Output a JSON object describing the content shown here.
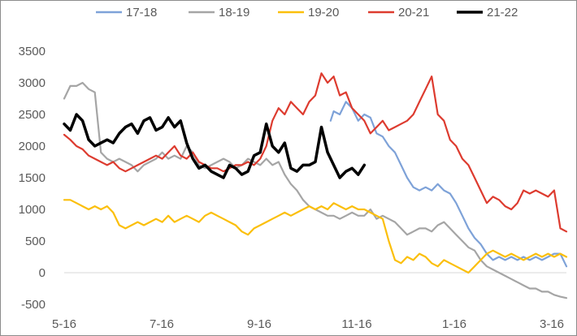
{
  "chart_data": {
    "type": "line",
    "title": "",
    "xlabel": "",
    "ylabel": "",
    "ylim": [
      -500,
      3500
    ],
    "yticks": [
      "-500",
      "0",
      "500",
      "1000",
      "1500",
      "2000",
      "2500",
      "3000",
      "3500"
    ],
    "xticks": [
      "5-16",
      "7-16",
      "9-16",
      "11-16",
      "1-16",
      "3-16"
    ],
    "grid": false,
    "legend": "top",
    "x_unit": "weeks from 5-16",
    "series": [
      {
        "name": "17-18",
        "color": "#7ea2d8",
        "x": [
          0,
          0,
          43.5,
          44,
          45,
          46,
          47,
          48,
          49,
          50,
          51,
          52,
          53,
          54,
          55,
          56,
          57,
          58,
          59,
          60,
          61,
          62,
          63,
          64,
          65,
          66,
          67,
          68,
          69,
          70,
          71,
          72,
          73,
          74,
          75,
          76,
          77,
          78,
          79,
          80,
          81,
          82
        ],
        "y": [
          null,
          null,
          2400,
          2550,
          2500,
          2700,
          2600,
          2400,
          2500,
          2450,
          2200,
          2150,
          2000,
          1900,
          1700,
          1500,
          1350,
          1300,
          1350,
          1300,
          1400,
          1300,
          1250,
          1100,
          900,
          700,
          550,
          450,
          300,
          200,
          250,
          200,
          250,
          200,
          250,
          200,
          250,
          200,
          250,
          300,
          300,
          100
        ]
      },
      {
        "name": "18-19",
        "color": "#a5a5a5",
        "x": [
          0,
          1,
          2,
          3,
          4,
          5,
          6,
          7,
          8,
          9,
          10,
          11,
          12,
          13,
          14,
          15,
          16,
          17,
          18,
          19,
          20,
          21,
          22,
          23,
          24,
          25,
          26,
          27,
          28,
          29,
          30,
          31,
          32,
          33,
          34,
          35,
          36,
          37,
          38,
          39,
          40,
          41,
          42,
          43,
          44,
          45,
          46,
          47,
          48,
          49,
          50,
          51,
          52,
          53,
          54,
          55,
          56,
          57,
          58,
          59,
          60,
          61,
          62,
          63,
          64,
          65,
          66,
          67,
          68,
          69,
          70,
          71,
          72,
          73,
          74,
          75,
          76,
          77,
          78,
          79,
          80,
          81,
          82
        ],
        "y": [
          2750,
          2950,
          2950,
          3000,
          2900,
          2850,
          1900,
          1800,
          1750,
          1800,
          1750,
          1700,
          1600,
          1700,
          1750,
          1800,
          1900,
          1800,
          1850,
          1800,
          2000,
          1900,
          1700,
          1650,
          1700,
          1750,
          1800,
          1750,
          1650,
          1700,
          1800,
          1750,
          1700,
          1800,
          1700,
          1750,
          1550,
          1400,
          1300,
          1150,
          1050,
          1000,
          950,
          900,
          900,
          850,
          900,
          950,
          900,
          900,
          1000,
          850,
          900,
          850,
          800,
          700,
          600,
          650,
          700,
          700,
          650,
          750,
          800,
          700,
          600,
          500,
          400,
          350,
          200,
          100,
          50,
          0,
          -50,
          -100,
          -150,
          -200,
          -250,
          -250,
          -300,
          -300,
          -350,
          -380,
          -400
        ]
      },
      {
        "name": "19-20",
        "color": "#fbbf0b",
        "x": [
          0,
          1,
          2,
          3,
          4,
          5,
          6,
          7,
          8,
          9,
          10,
          11,
          12,
          13,
          14,
          15,
          16,
          17,
          18,
          19,
          20,
          21,
          22,
          23,
          24,
          25,
          26,
          27,
          28,
          29,
          30,
          31,
          32,
          33,
          34,
          35,
          36,
          37,
          38,
          39,
          40,
          41,
          42,
          43,
          44,
          45,
          46,
          47,
          48,
          49,
          50,
          51,
          52,
          53,
          54,
          55,
          56,
          57,
          58,
          59,
          60,
          61,
          62,
          63,
          64,
          65,
          66,
          67,
          68,
          69,
          70,
          71,
          72,
          73,
          74,
          75,
          76,
          77,
          78,
          79,
          80,
          81,
          82
        ],
        "y": [
          1150,
          1150,
          1100,
          1050,
          1000,
          1050,
          1000,
          1050,
          950,
          750,
          700,
          750,
          800,
          750,
          800,
          850,
          800,
          900,
          800,
          850,
          900,
          850,
          800,
          900,
          950,
          900,
          850,
          800,
          750,
          650,
          600,
          700,
          750,
          800,
          850,
          900,
          950,
          900,
          950,
          1000,
          1050,
          1000,
          1050,
          1000,
          1100,
          1050,
          1000,
          1050,
          1000,
          1000,
          950,
          900,
          850,
          500,
          200,
          150,
          250,
          200,
          300,
          250,
          150,
          100,
          200,
          150,
          100,
          50,
          0,
          100,
          200,
          300,
          350,
          300,
          250,
          300,
          250,
          200,
          250,
          300,
          250,
          300,
          250,
          300,
          250
        ]
      },
      {
        "name": "20-21",
        "color": "#dd3b2f",
        "x": [
          0,
          1,
          2,
          3,
          4,
          5,
          6,
          7,
          8,
          9,
          10,
          11,
          12,
          13,
          14,
          15,
          16,
          17,
          18,
          19,
          20,
          21,
          22,
          23,
          24,
          25,
          26,
          27,
          28,
          29,
          30,
          31,
          32,
          33,
          34,
          35,
          36,
          37,
          38,
          39,
          40,
          41,
          42,
          43,
          44,
          45,
          46,
          47,
          48,
          49,
          50,
          51,
          52,
          53,
          54,
          55,
          56,
          57,
          58,
          59,
          60,
          61,
          62,
          63,
          64,
          65,
          66,
          67,
          68,
          69,
          70,
          71,
          72,
          73,
          74,
          75,
          76,
          77,
          78,
          79,
          80,
          81,
          82
        ],
        "y": [
          2180,
          2100,
          2000,
          1950,
          1850,
          1800,
          1750,
          1700,
          1750,
          1650,
          1600,
          1650,
          1700,
          1750,
          1800,
          1850,
          1800,
          1900,
          2000,
          1850,
          1800,
          1900,
          1750,
          1700,
          1650,
          1650,
          1600,
          1650,
          1700,
          1700,
          1750,
          1700,
          1800,
          2000,
          2400,
          2600,
          2500,
          2700,
          2600,
          2500,
          2700,
          2800,
          3150,
          3000,
          3100,
          2800,
          2850,
          2600,
          2500,
          2400,
          2200,
          2300,
          2400,
          2250,
          2300,
          2350,
          2400,
          2500,
          2700,
          2900,
          3100,
          2500,
          2400,
          2100,
          2000,
          1800,
          1700,
          1500,
          1300,
          1100,
          1200,
          1150,
          1050,
          1000,
          1100,
          1300,
          1250,
          1300,
          1250,
          1200,
          1300,
          700,
          650
        ]
      },
      {
        "name": "21-22",
        "color": "#000000",
        "x": [
          0,
          1,
          2,
          3,
          4,
          5,
          6,
          7,
          8,
          9,
          10,
          11,
          12,
          13,
          14,
          15,
          16,
          17,
          18,
          19,
          20,
          21,
          22,
          23,
          24,
          25,
          26,
          27,
          28,
          29,
          30,
          31,
          32,
          33,
          34,
          35,
          36,
          37,
          38,
          39,
          40,
          41,
          42,
          43,
          44,
          45,
          46,
          47,
          48,
          49
        ],
        "y": [
          2350,
          2250,
          2500,
          2400,
          2100,
          2000,
          2050,
          2100,
          2050,
          2200,
          2300,
          2350,
          2200,
          2400,
          2450,
          2250,
          2300,
          2450,
          2300,
          2400,
          2050,
          1800,
          1650,
          1700,
          1600,
          1550,
          1500,
          1700,
          1650,
          1550,
          1600,
          1850,
          1900,
          2350,
          2000,
          1900,
          2050,
          1650,
          1600,
          1700,
          1700,
          1750,
          2300,
          1900,
          1700,
          1500,
          1600,
          1650,
          1550,
          1700
        ]
      }
    ]
  }
}
